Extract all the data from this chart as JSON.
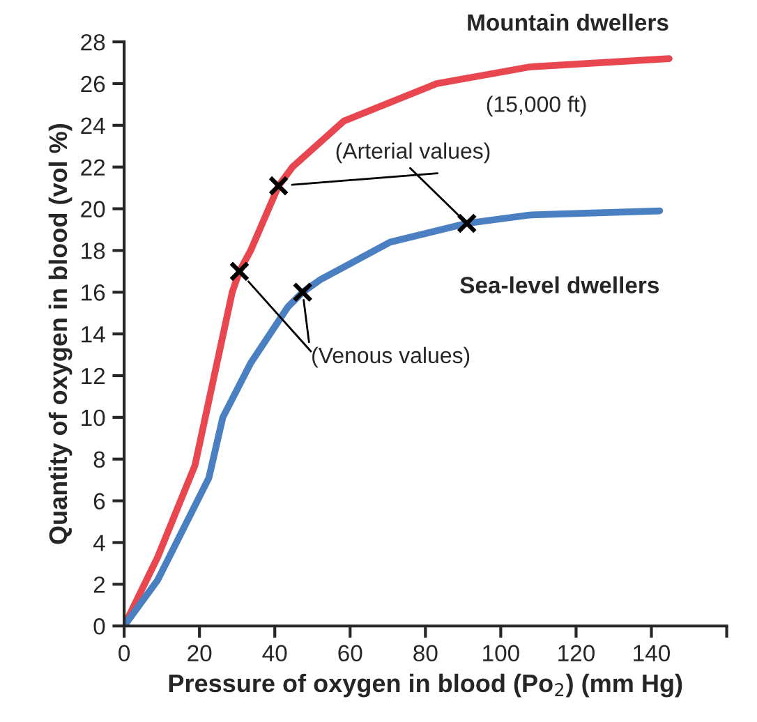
{
  "chart_data": {
    "type": "line",
    "xlabel": "Pressure of oxygen in blood (Po$_{2}$) (mm Hg)",
    "ylabel": "Quantity of oxygen in blood (vol %)",
    "xlim": [
      0,
      160
    ],
    "xticks": [
      0,
      20,
      40,
      60,
      80,
      100,
      120,
      140,
      {
        "value": 160,
        "label": null
      }
    ],
    "ylim": [
      0,
      28
    ],
    "yticks": [
      0,
      2,
      4,
      6,
      8,
      10,
      12,
      14,
      16,
      18,
      20,
      22,
      24,
      26,
      28
    ],
    "grid": false,
    "legend": false,
    "series": [
      {
        "name": "Mountain dwellers",
        "color": "#e8474f",
        "line_style": "solid",
        "marker": "none",
        "x": [
          0,
          8.9,
          18.8,
          28.7,
          30.6,
          33.6,
          41,
          44.7,
          58.3,
          83,
          107.7,
          144.7
        ],
        "values": [
          0,
          3.3,
          7.7,
          16.0,
          17.0,
          18.0,
          21.1,
          22.0,
          24.2,
          26.0,
          26.8,
          27.2
        ]
      },
      {
        "name": "Sea-level dwellers",
        "color": "#4a7fc1",
        "line_style": "solid",
        "marker": "none",
        "x": [
          0,
          8.9,
          22.5,
          26.2,
          33.6,
          43.5,
          47.4,
          52.1,
          70.6,
          91,
          107.7,
          142.2
        ],
        "values": [
          0,
          2.2,
          7.1,
          10.0,
          12.6,
          15.3,
          16.0,
          16.6,
          18.4,
          19.3,
          19.7,
          19.9
        ]
      },
      {
        "type": "scatter",
        "color": "#000000",
        "marker": "cross",
        "x": [
          30.6,
          41,
          47.4,
          91
        ],
        "values": [
          17.0,
          21.1,
          16.0,
          19.3
        ]
      }
    ],
    "annotations": [
      "(15,000 ft)",
      {
        "text": "(Arterial values)",
        "x": 91,
        "y": 19.3
      },
      {
        "text": "(Venous values)",
        "x": 47.4,
        "y": 16.0
      }
    ]
  }
}
